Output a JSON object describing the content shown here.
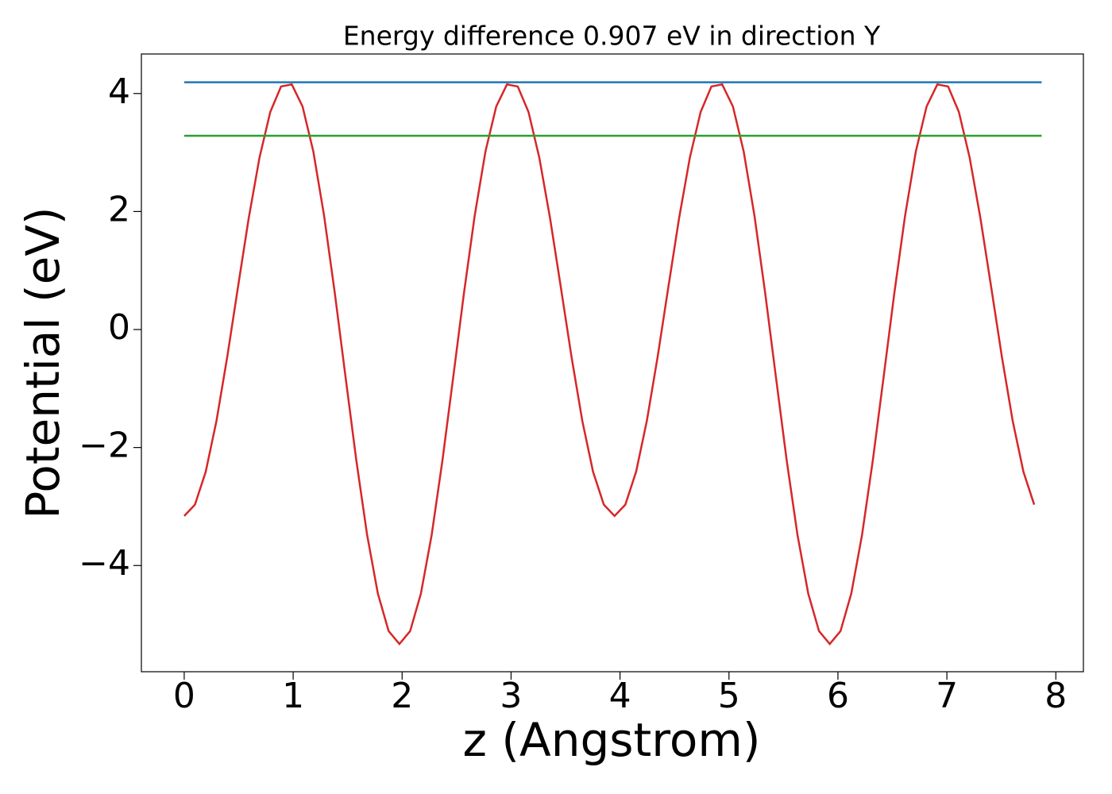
{
  "chart_data": {
    "type": "line",
    "title": "Energy difference 0.907 eV in direction Y",
    "x_label": "z (Angstrom)",
    "y_label": "Potential (eV)",
    "xlim": [
      -0.393,
      8.253
    ],
    "ylim": [
      -5.8,
      4.67
    ],
    "xticks": [
      0,
      1,
      2,
      3,
      4,
      5,
      6,
      7,
      8
    ],
    "yticks": [
      {
        "value": -4,
        "label": "−4"
      },
      {
        "value": -2,
        "label": "−2"
      },
      0,
      2,
      4
    ],
    "series": [
      {
        "color": "#d62728",
        "x": [
          0,
          0.0988,
          0.1975,
          0.2963,
          0.395,
          0.4938,
          0.5925,
          0.6913,
          0.79,
          0.8888,
          0.9875,
          1.0863,
          1.185,
          1.2838,
          1.3825,
          1.4813,
          1.58,
          1.6788,
          1.7775,
          1.8763,
          1.975,
          2.0738,
          2.1725,
          2.2713,
          2.37,
          2.4688,
          2.5675,
          2.6663,
          2.765,
          2.8638,
          2.9625,
          3.0613,
          3.16,
          3.2588,
          3.3575,
          3.4563,
          3.555,
          3.6538,
          3.7525,
          3.8513,
          3.95,
          4.0488,
          4.1475,
          4.2463,
          4.345,
          4.4438,
          4.5425,
          4.6413,
          4.74,
          4.8388,
          4.9375,
          5.0363,
          5.135,
          5.2338,
          5.3325,
          5.4313,
          5.53,
          5.6288,
          5.7275,
          5.8263,
          5.925,
          6.0238,
          6.1225,
          6.2213,
          6.32,
          6.4188,
          6.5175,
          6.6163,
          6.715,
          6.8138,
          6.9125,
          7.0113,
          7.11,
          7.2088,
          7.3075,
          7.4063,
          7.505,
          7.6038,
          7.7025,
          7.8013
        ],
        "values": [
          -3.16,
          -2.968,
          -2.411,
          -1.547,
          -0.465,
          0.722,
          1.891,
          2.916,
          3.688,
          4.119,
          4.155,
          3.78,
          3.018,
          1.931,
          0.615,
          -0.812,
          -2.221,
          -3.481,
          -4.475,
          -5.111,
          -5.33,
          -5.111,
          -4.475,
          -3.481,
          -2.221,
          -0.812,
          0.615,
          1.931,
          3.018,
          3.78,
          4.155,
          4.119,
          3.688,
          2.916,
          1.891,
          0.722,
          -0.465,
          -1.547,
          -2.411,
          -2.968,
          -3.16,
          -2.968,
          -2.411,
          -1.547,
          -0.465,
          0.722,
          1.891,
          2.916,
          3.688,
          4.119,
          4.155,
          3.78,
          3.018,
          1.931,
          0.615,
          -0.812,
          -2.221,
          -3.481,
          -4.475,
          -5.111,
          -5.33,
          -5.111,
          -4.475,
          -3.481,
          -2.221,
          -0.812,
          0.615,
          1.931,
          3.018,
          3.78,
          4.155,
          4.119,
          3.688,
          2.916,
          1.891,
          0.722,
          -0.465,
          -1.547,
          -2.411,
          -2.968
        ]
      },
      {
        "color": "#1f77b4",
        "x": [
          0,
          7.87
        ],
        "values": [
          4.19,
          4.19
        ]
      },
      {
        "color": "#2ca02c",
        "x": [
          0,
          7.87
        ],
        "values": [
          3.283,
          3.283
        ]
      }
    ]
  }
}
